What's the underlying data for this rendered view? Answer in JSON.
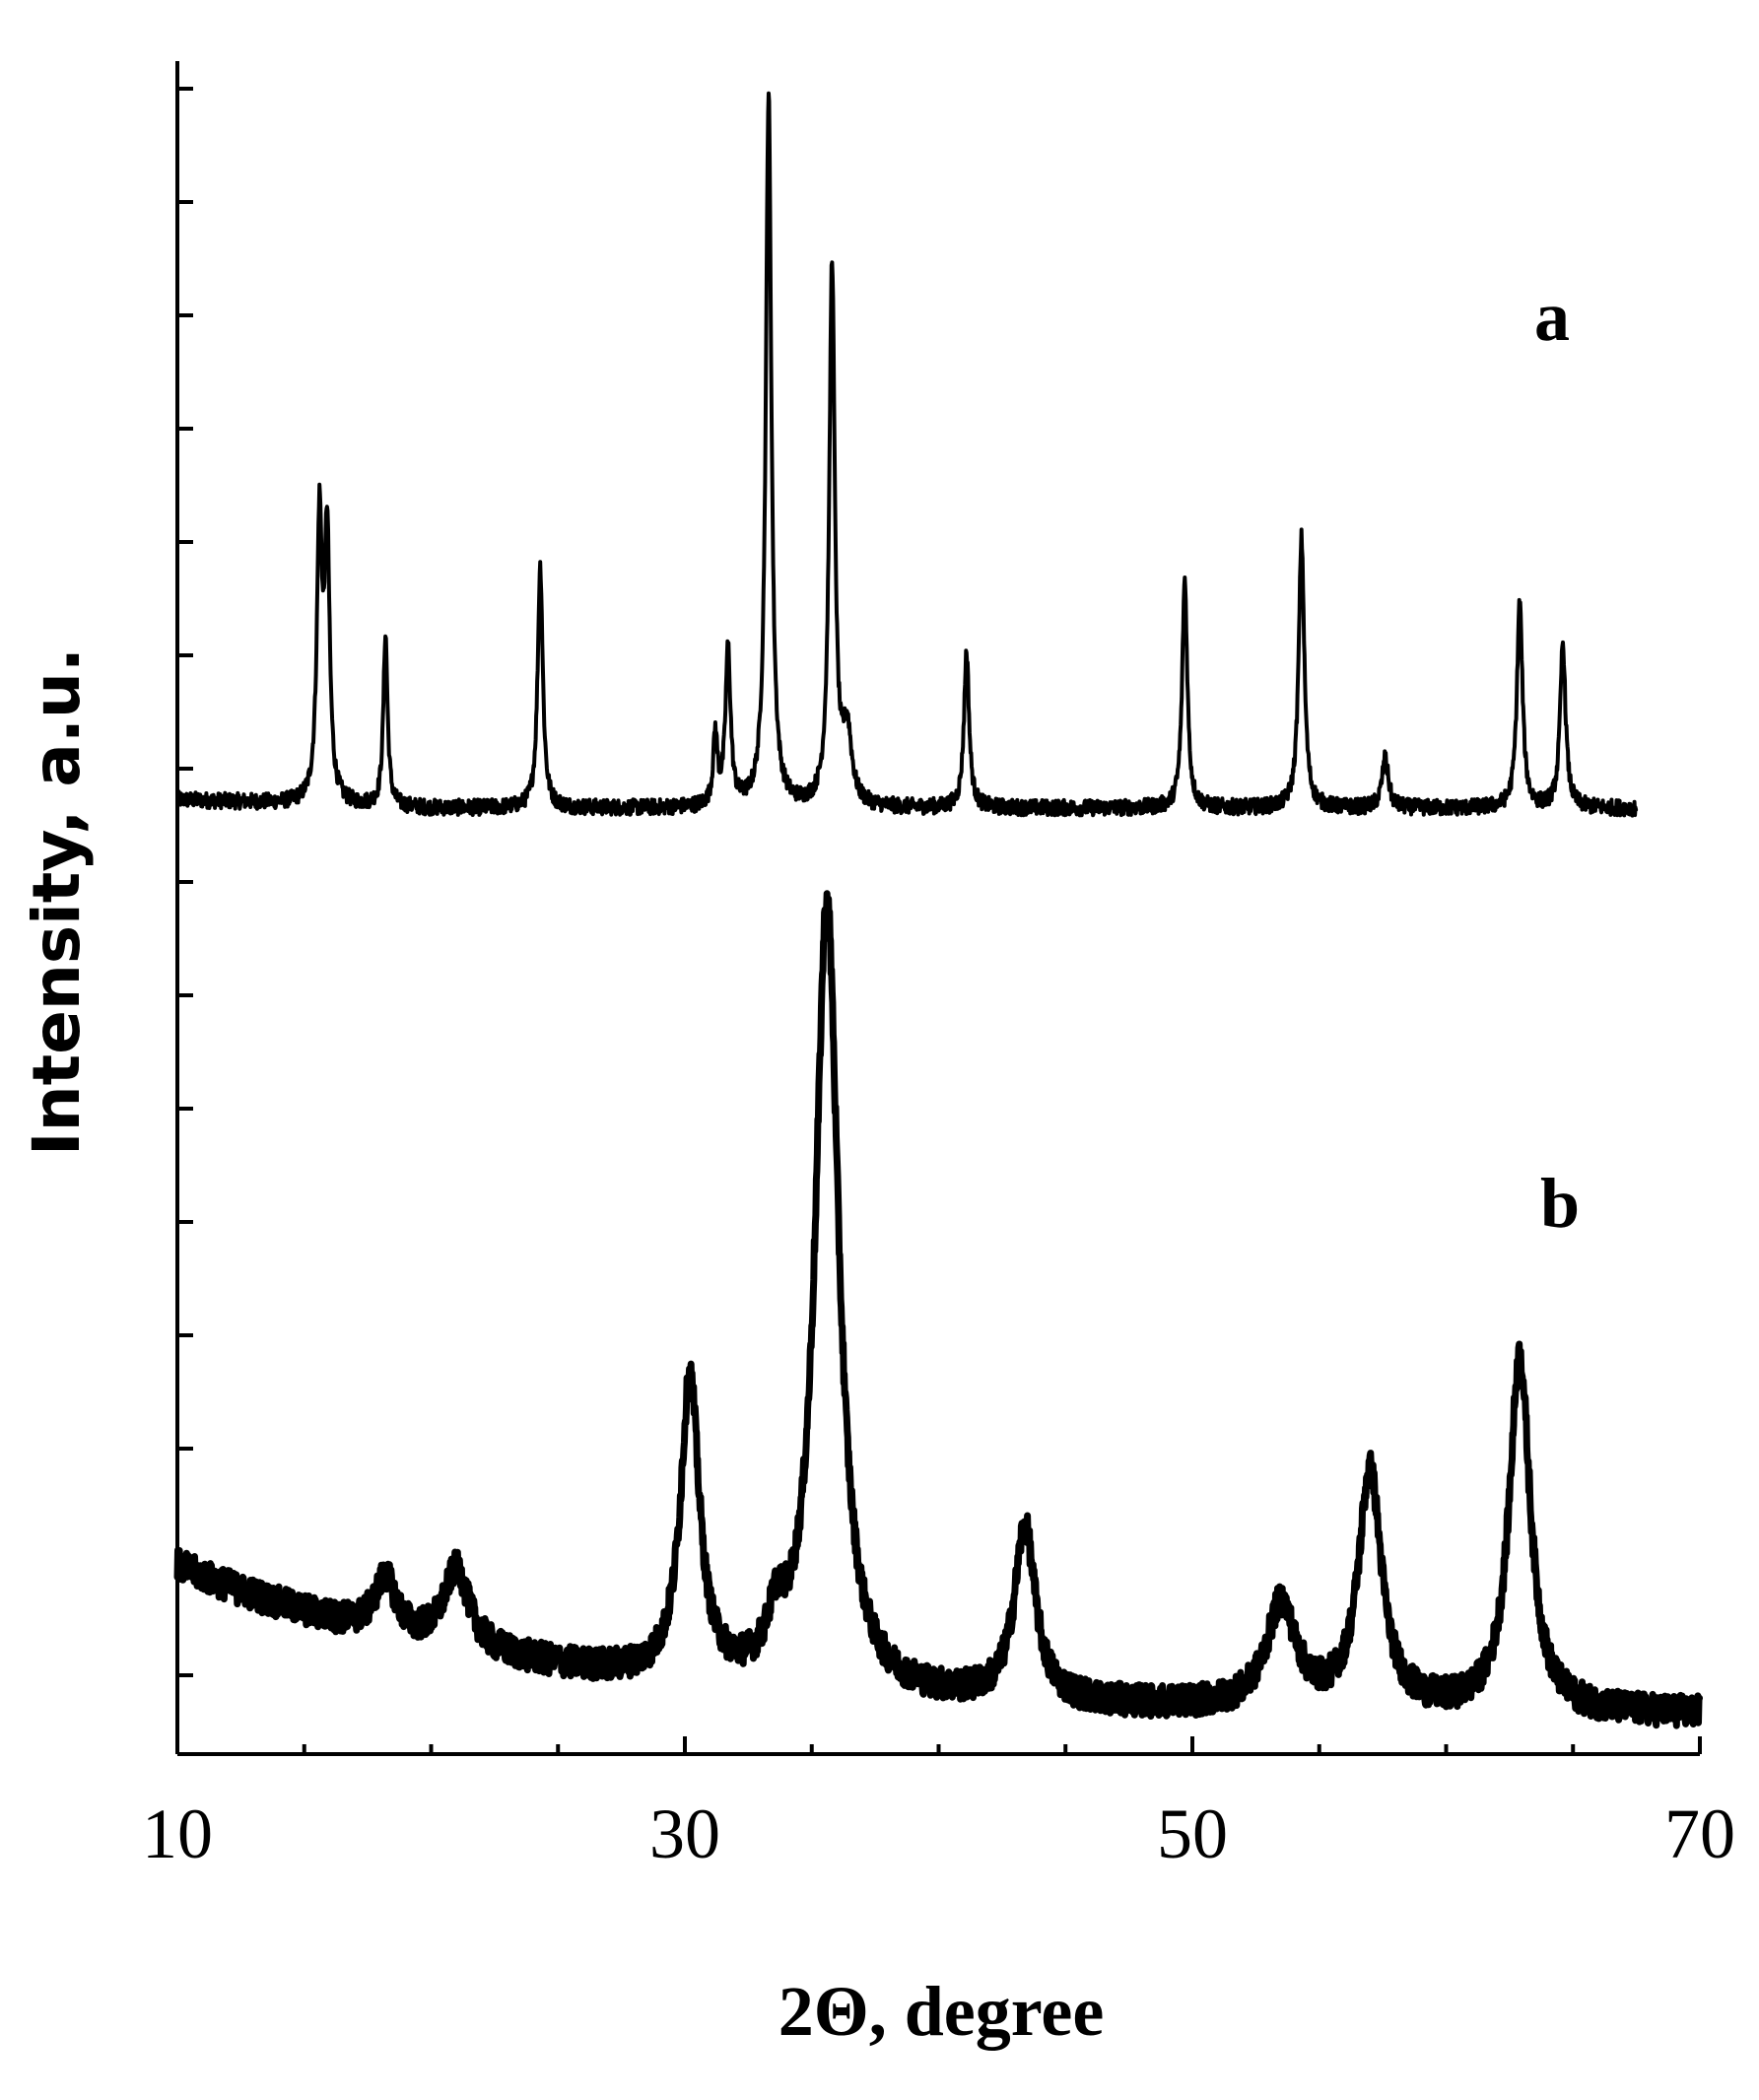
{
  "chart_data": {
    "type": "line",
    "xlabel": "2Θ, degree",
    "ylabel": "Intensity, a.u.",
    "xlim": [
      10,
      70
    ],
    "x_ticks": [
      10,
      30,
      50,
      70
    ],
    "y_ticks_unlabeled": true,
    "grid": false,
    "series": [
      {
        "name": "a",
        "x_range": [
          10,
          67.5
        ],
        "baseline": 0.03,
        "peaks": [
          {
            "x": 15.6,
            "y": 0.39,
            "w": 0.12
          },
          {
            "x": 15.9,
            "y": 0.37,
            "w": 0.12
          },
          {
            "x": 18.2,
            "y": 0.24,
            "w": 0.1
          },
          {
            "x": 24.3,
            "y": 0.34,
            "w": 0.12
          },
          {
            "x": 31.2,
            "y": 0.1,
            "w": 0.1
          },
          {
            "x": 31.7,
            "y": 0.22,
            "w": 0.12
          },
          {
            "x": 33.3,
            "y": 1.0,
            "w": 0.13
          },
          {
            "x": 35.8,
            "y": 0.76,
            "w": 0.13
          },
          {
            "x": 36.4,
            "y": 0.1,
            "w": 0.2
          },
          {
            "x": 41.1,
            "y": 0.22,
            "w": 0.12
          },
          {
            "x": 49.7,
            "y": 0.32,
            "w": 0.12
          },
          {
            "x": 54.3,
            "y": 0.38,
            "w": 0.13
          },
          {
            "x": 57.6,
            "y": 0.07,
            "w": 0.15
          },
          {
            "x": 62.9,
            "y": 0.29,
            "w": 0.13
          },
          {
            "x": 64.6,
            "y": 0.23,
            "w": 0.13
          }
        ]
      },
      {
        "name": "b",
        "x_range": [
          10,
          70
        ],
        "baseline_start": 0.22,
        "baseline_end": 0.03,
        "peaks": [
          {
            "x": 18.2,
            "y": 0.07,
            "w": 0.5
          },
          {
            "x": 21.0,
            "y": 0.1,
            "w": 0.6
          },
          {
            "x": 30.2,
            "y": 0.38,
            "w": 0.45
          },
          {
            "x": 33.6,
            "y": 0.06,
            "w": 0.4
          },
          {
            "x": 35.6,
            "y": 1.0,
            "w": 0.55
          },
          {
            "x": 43.4,
            "y": 0.22,
            "w": 0.5
          },
          {
            "x": 53.5,
            "y": 0.13,
            "w": 0.7
          },
          {
            "x": 57.0,
            "y": 0.3,
            "w": 0.55
          },
          {
            "x": 62.9,
            "y": 0.45,
            "w": 0.5
          }
        ]
      }
    ]
  }
}
